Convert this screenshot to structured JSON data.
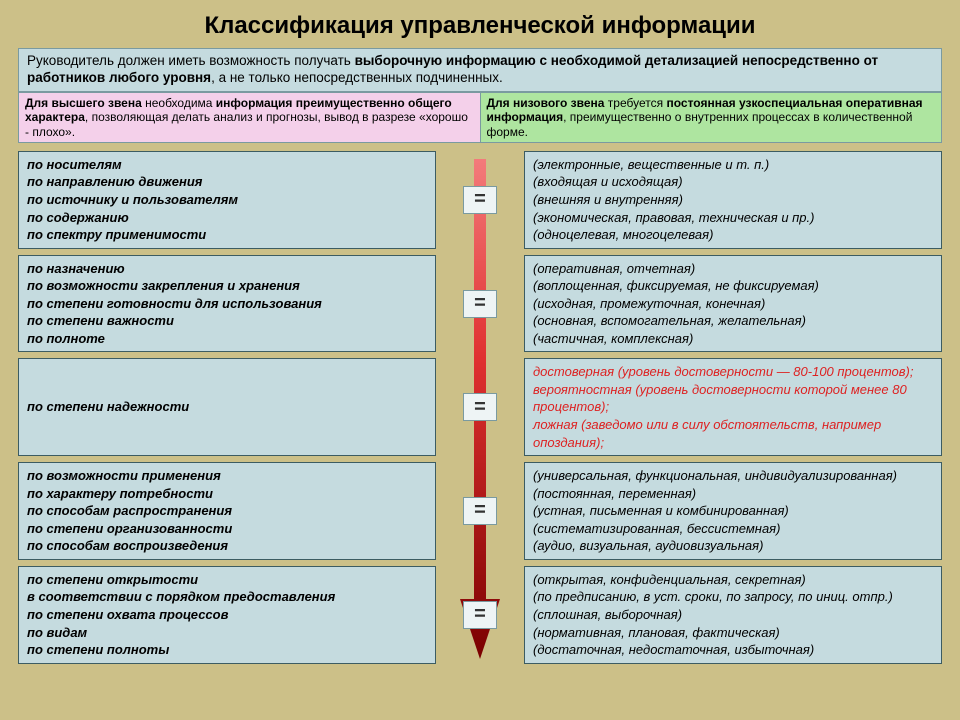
{
  "title": "Классификация управленческой информации",
  "intro": {
    "prefix": "Руководитель должен иметь возможность получать ",
    "bold1": "выборочную информацию с необходимой детализацией непосредственно от работников любого уровня",
    "suffix": ", а не только непосредственных подчиненных."
  },
  "pink": {
    "p1": "Для высшего звена",
    "p2": " необходима ",
    "p3": "информация преимущественно общего характера",
    "p4": ", позволяющая делать анализ и прогнозы, вывод в разрезе «хорошо - плохо»."
  },
  "green": {
    "p1": "Для низового звена",
    "p2": " требуется ",
    "p3": "постоянная узкоспециальная оперативная информация",
    "p4": ", преимущественно о внутренних процессах в количественной форме."
  },
  "colors": {
    "bg": "#ccc088",
    "cell": "#c5dbdf",
    "pink": "#f4d0ea",
    "green": "#aee5a0",
    "arrow_top": "#e04040",
    "arrow_bot": "#8a0000",
    "red_text": "#d22"
  },
  "eq": "=",
  "rows": [
    {
      "left": "по носителям\nпо направлению движения\nпо источнику и пользователям\nпо содержанию\nпо спектру применимости",
      "right": "(электронные, вещественные и т. п.)\n(входящая и исходящая)\n(внешняя и внутренняя)\n(экономическая, правовая, техническая и пр.)\n(одноцелевая, многоцелевая)",
      "red": false
    },
    {
      "left": "по назначению\nпо возможности закрепления и хранения\nпо степени готовности для использования\nпо степени важности\nпо полноте",
      "right": "(оперативная, отчетная)\n(воплощенная, фиксируемая, не фиксируемая)\n(исходная, промежуточная, конечная)\n(основная, вспомогательная, желательная)\n(частичная, комплексная)",
      "red": false
    },
    {
      "left": "по степени надежности",
      "right": "достоверная (уровень достоверности — 80-100 процентов);\nвероятностная (уровень достоверности которой менее 80 процентов);\nложная (заведомо или в силу обстоятельств, например опоздания);",
      "red": true
    },
    {
      "left": "по возможности применения\nпо характеру потребности\nпо способам распространения\nпо степени организованности\nпо способам воспроизведения",
      "right": "(универсальная, функциональная, индивидуализированная)\n(постоянная, переменная)\n(устная, письменная и комбинированная)\n(систематизированная, бессистемная)\n(аудио, визуальная, аудиовизуальная)",
      "red": false
    },
    {
      "left": "по степени открытости\nв соответствии с порядком предоставления\nпо степени охвата процессов\nпо видам\nпо степени полноты",
      "right": "(открытая, конфиденциальная, секретная)\n(по предписанию, в уст. сроки, по запросу, по иниц. отпр.)\n(сплошная, выборочная)\n(нормативная, плановая, фактическая)\n(достаточная, недостаточная, избыточная)",
      "red": false
    }
  ]
}
